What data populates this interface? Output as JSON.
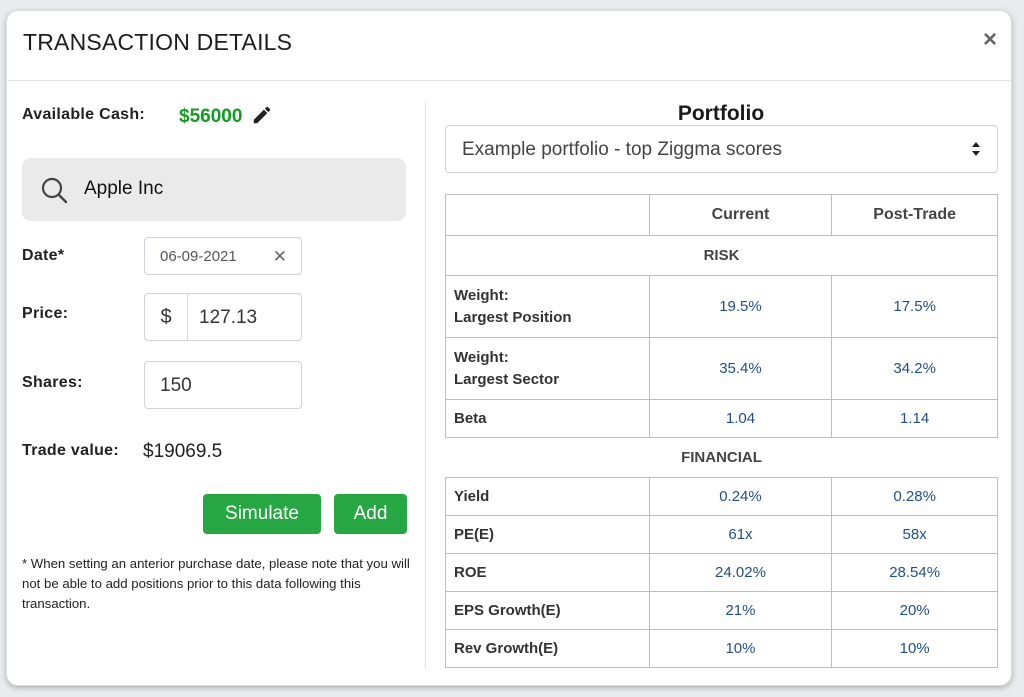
{
  "modal": {
    "title": "TRANSACTION DETAILS",
    "close_glyph": "×"
  },
  "left": {
    "available_cash_label": "Available Cash:",
    "available_cash_value": "$56000",
    "search_value": "Apple Inc",
    "date_label": "Date*",
    "date_value": "06-09-2021",
    "date_clear_glyph": "✕",
    "price_label": "Price:",
    "price_addon": "$",
    "price_value": "127.13",
    "shares_label": "Shares:",
    "shares_value": "150",
    "trade_value_label": "Trade value:",
    "trade_value": "$19069.5",
    "simulate_label": "Simulate",
    "add_label": "Add",
    "note": "* When setting an anterior purchase date, please note that you will not be able to add positions prior to this data following this transaction."
  },
  "right": {
    "portfolio_title": "Portfolio",
    "portfolio_selected": "Example portfolio - top Ziggma scores",
    "table": {
      "headers": [
        "",
        "Current",
        "Post-Trade"
      ],
      "risk_label": "RISK",
      "risk_rows": [
        {
          "name_line1": "Weight:",
          "name_line2": "Largest Position",
          "current": "19.5%",
          "post": "17.5%"
        },
        {
          "name_line1": "Weight:",
          "name_line2": "Largest Sector",
          "current": "35.4%",
          "post": "34.2%"
        },
        {
          "name": "Beta",
          "current": "1.04",
          "post": "1.14"
        }
      ],
      "financial_label": "FINANCIAL",
      "financial_rows": [
        {
          "name": "Yield",
          "current": "0.24%",
          "post": "0.28%"
        },
        {
          "name": "PE(E)",
          "current": "61x",
          "post": "58x"
        },
        {
          "name": "ROE",
          "current": "24.02%",
          "post": "28.54%"
        },
        {
          "name": "EPS Growth(E)",
          "current": "21%",
          "post": "20%"
        },
        {
          "name": "Rev Growth(E)",
          "current": "10%",
          "post": "10%"
        }
      ]
    }
  },
  "colors": {
    "accent_green": "#27a744",
    "cash_green": "#139b22",
    "value_blue": "#1f4f8b"
  },
  "icons": [
    "pencil-icon",
    "search-icon",
    "clear-icon",
    "close-icon",
    "select-arrows-icon"
  ]
}
